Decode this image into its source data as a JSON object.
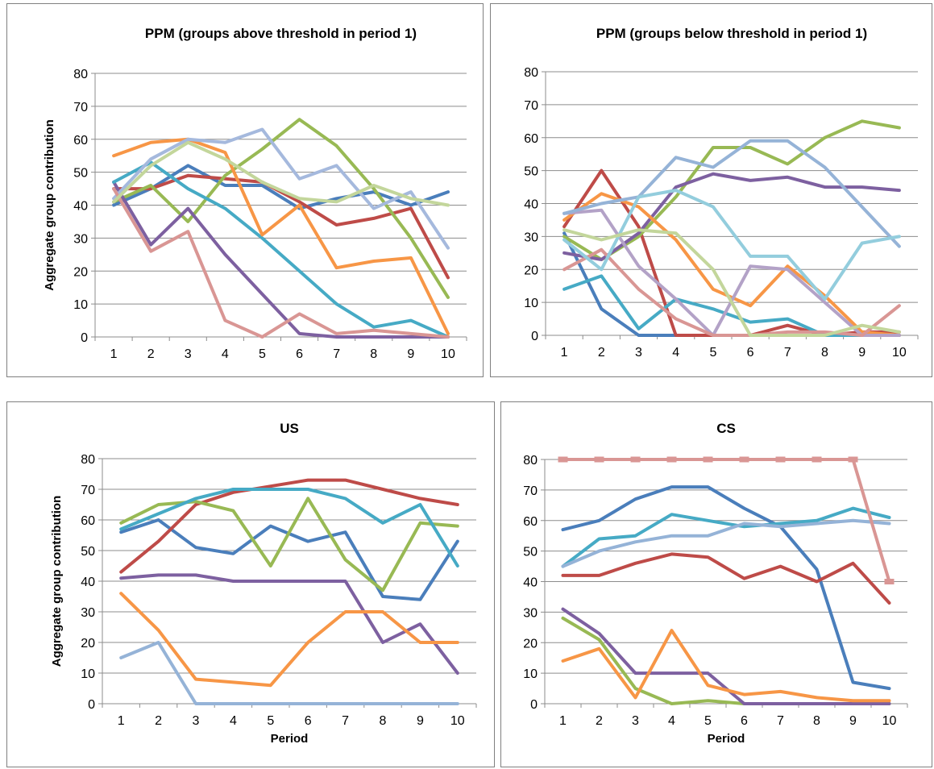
{
  "chart_data": [
    {
      "type": "line",
      "title": "PPM (groups above threshold in period 1)",
      "xlabel": "",
      "ylabel": "Aggregate group contribution",
      "ylim": [
        0,
        80
      ],
      "ytick_step": 10,
      "categories": [
        "1",
        "2",
        "3",
        "4",
        "5",
        "6",
        "7",
        "8",
        "9",
        "10"
      ],
      "grid": true,
      "series": [
        {
          "color": "#4a7ebb",
          "values": [
            40,
            45,
            52,
            46,
            46,
            39,
            42,
            44,
            40,
            44
          ]
        },
        {
          "color": "#be4b48",
          "values": [
            45,
            45,
            49,
            48,
            47,
            41,
            34,
            36,
            39,
            18
          ]
        },
        {
          "color": "#98b954",
          "values": [
            41,
            46,
            35,
            49,
            57,
            66,
            58,
            45,
            30,
            12
          ]
        },
        {
          "color": "#7d60a0",
          "values": [
            47,
            28,
            39,
            25,
            13,
            1,
            0,
            0,
            0,
            0
          ]
        },
        {
          "color": "#46aac5",
          "values": [
            47,
            53,
            45,
            39,
            30,
            20,
            10,
            3,
            5,
            0
          ]
        },
        {
          "color": "#f79646",
          "values": [
            55,
            59,
            60,
            56,
            31,
            40,
            21,
            23,
            24,
            1
          ]
        },
        {
          "color": "#a5b9dd",
          "values": [
            42,
            54,
            60,
            59,
            63,
            48,
            52,
            39,
            44,
            27
          ]
        },
        {
          "color": "#d99694",
          "values": [
            45,
            26,
            32,
            5,
            0,
            7,
            1,
            2,
            1,
            0
          ]
        },
        {
          "color": "#c3d69b",
          "values": [
            41,
            52,
            59,
            54,
            47,
            42,
            41,
            46,
            42,
            40
          ]
        }
      ]
    },
    {
      "type": "line",
      "title": "PPM (groups below threshold in period 1)",
      "xlabel": "",
      "ylabel": "",
      "ylim": [
        0,
        80
      ],
      "ytick_step": 10,
      "categories": [
        "1",
        "2",
        "3",
        "4",
        "5",
        "6",
        "7",
        "8",
        "9",
        "10"
      ],
      "grid": true,
      "series": [
        {
          "color": "#4a7ebb",
          "values": [
            31,
            8,
            0,
            0,
            0,
            0,
            0,
            0,
            0,
            0
          ]
        },
        {
          "color": "#be4b48",
          "values": [
            33,
            50,
            33,
            0,
            0,
            0,
            3,
            0,
            1,
            1
          ]
        },
        {
          "color": "#98b954",
          "values": [
            30,
            23,
            30,
            42,
            57,
            57,
            52,
            60,
            65,
            63
          ]
        },
        {
          "color": "#7d60a0",
          "values": [
            25,
            23,
            31,
            45,
            49,
            47,
            48,
            45,
            45,
            44
          ]
        },
        {
          "color": "#46aac5",
          "values": [
            14,
            18,
            2,
            11,
            8,
            4,
            5,
            0,
            0,
            0
          ]
        },
        {
          "color": "#f79646",
          "values": [
            35,
            43,
            39,
            29,
            14,
            9,
            21,
            12,
            1,
            0
          ]
        },
        {
          "color": "#b3a2c7",
          "values": [
            37,
            38,
            21,
            11,
            0,
            21,
            20,
            10,
            0,
            0
          ]
        },
        {
          "color": "#d99694",
          "values": [
            20,
            26,
            14,
            5,
            0,
            0,
            1,
            1,
            0,
            9
          ]
        },
        {
          "color": "#95b3d7",
          "values": [
            37,
            40,
            42,
            54,
            51,
            59,
            59,
            51,
            39,
            27
          ]
        },
        {
          "color": "#93cddd",
          "values": [
            29,
            20,
            42,
            44,
            39,
            24,
            24,
            11,
            28,
            30
          ]
        },
        {
          "color": "#c3d69b",
          "values": [
            32,
            29,
            32,
            31,
            20,
            0,
            0,
            0,
            3,
            1
          ]
        }
      ]
    },
    {
      "type": "line",
      "title": "US",
      "xlabel": "Period",
      "ylabel": "Aggregate group contribution",
      "ylim": [
        0,
        80
      ],
      "ytick_step": 10,
      "categories": [
        "1",
        "2",
        "3",
        "4",
        "5",
        "6",
        "7",
        "8",
        "9",
        "10"
      ],
      "grid": true,
      "series": [
        {
          "color": "#4a7ebb",
          "values": [
            56,
            60,
            51,
            49,
            58,
            53,
            56,
            35,
            34,
            53
          ]
        },
        {
          "color": "#be4b48",
          "values": [
            43,
            53,
            65,
            69,
            71,
            73,
            73,
            70,
            67,
            65
          ]
        },
        {
          "color": "#98b954",
          "values": [
            59,
            65,
            66,
            63,
            45,
            67,
            47,
            37,
            59,
            58
          ]
        },
        {
          "color": "#7d60a0",
          "values": [
            41,
            42,
            42,
            40,
            40,
            40,
            40,
            20,
            26,
            10
          ]
        },
        {
          "color": "#46aac5",
          "values": [
            57,
            62,
            67,
            70,
            70,
            70,
            67,
            59,
            65,
            45
          ]
        },
        {
          "color": "#f79646",
          "values": [
            36,
            24,
            8,
            7,
            6,
            20,
            30,
            30,
            20,
            20
          ]
        },
        {
          "color": "#95b3d7",
          "values": [
            15,
            20,
            0,
            0,
            0,
            0,
            0,
            0,
            0,
            0
          ]
        }
      ]
    },
    {
      "type": "line",
      "title": "CS",
      "xlabel": "Period",
      "ylabel": "",
      "ylim": [
        0,
        80
      ],
      "ytick_step": 10,
      "categories": [
        "1",
        "2",
        "3",
        "4",
        "5",
        "6",
        "7",
        "8",
        "9",
        "10"
      ],
      "grid": true,
      "series": [
        {
          "color": "#4a7ebb",
          "values": [
            57,
            60,
            67,
            71,
            71,
            64,
            58,
            44,
            7,
            5
          ]
        },
        {
          "color": "#be4b48",
          "values": [
            42,
            42,
            46,
            49,
            48,
            41,
            45,
            40,
            46,
            33
          ]
        },
        {
          "color": "#98b954",
          "values": [
            28,
            21,
            5,
            0,
            1,
            0,
            0,
            0,
            0,
            0
          ]
        },
        {
          "color": "#7d60a0",
          "values": [
            31,
            23,
            10,
            10,
            10,
            0,
            0,
            0,
            0,
            0
          ]
        },
        {
          "color": "#46aac5",
          "values": [
            45,
            54,
            55,
            62,
            60,
            58,
            59,
            60,
            64,
            61
          ]
        },
        {
          "color": "#f79646",
          "values": [
            14,
            18,
            2,
            24,
            6,
            3,
            4,
            2,
            1,
            1
          ]
        },
        {
          "color": "#95b3d7",
          "values": [
            45,
            50,
            53,
            55,
            55,
            59,
            58,
            59,
            60,
            59
          ]
        },
        {
          "color": "#d99694",
          "marker": "dash",
          "values": [
            80,
            80,
            80,
            80,
            80,
            80,
            80,
            80,
            80,
            40
          ]
        }
      ]
    }
  ]
}
